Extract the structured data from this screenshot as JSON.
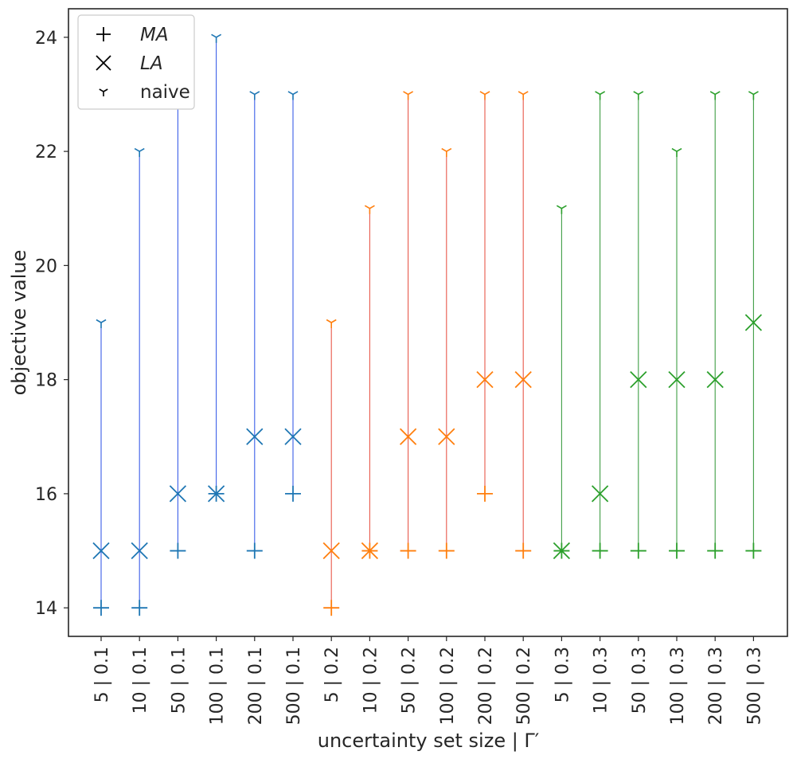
{
  "chart_data": {
    "type": "scatter",
    "xlabel": "uncertainty set size | Γ′",
    "ylabel": "objective value",
    "ylim": [
      13.5,
      24.5
    ],
    "yticks": [
      14,
      16,
      18,
      20,
      22,
      24
    ],
    "grid": false,
    "legend": {
      "placement": "top-left",
      "entries": [
        {
          "marker": "plus",
          "label": "MA",
          "italic": true
        },
        {
          "marker": "x",
          "label": "LA",
          "italic": true
        },
        {
          "marker": "tri",
          "label": "naive",
          "italic": false
        }
      ]
    },
    "groups": [
      {
        "gamma": "0.1",
        "marker_color": "#1f77b4",
        "line_color": "#3b5ee8"
      },
      {
        "gamma": "0.2",
        "marker_color": "#ff7f0e",
        "line_color": "#e8584a"
      },
      {
        "gamma": "0.3",
        "marker_color": "#2ca02c",
        "line_color": "#3f9e45"
      }
    ],
    "categories": [
      "5 | 0.1",
      "10 | 0.1",
      "50 | 0.1",
      "100 | 0.1",
      "200 | 0.1",
      "500 | 0.1",
      "5 | 0.2",
      "10 | 0.2",
      "50 | 0.2",
      "100 | 0.2",
      "200 | 0.2",
      "500 | 0.2",
      "5 | 0.3",
      "10 | 0.3",
      "50 | 0.3",
      "100 | 0.3",
      "200 | 0.3",
      "500 | 0.3"
    ],
    "category_group": [
      0,
      0,
      0,
      0,
      0,
      0,
      1,
      1,
      1,
      1,
      1,
      1,
      2,
      2,
      2,
      2,
      2,
      2
    ],
    "series": [
      {
        "name": "MA",
        "marker": "plus",
        "values": [
          14,
          14,
          15,
          16,
          15,
          16,
          14,
          15,
          15,
          15,
          16,
          15,
          15,
          15,
          15,
          15,
          15,
          15
        ]
      },
      {
        "name": "LA",
        "marker": "x",
        "values": [
          15,
          15,
          16,
          16,
          17,
          17,
          15,
          15,
          17,
          17,
          18,
          18,
          15,
          16,
          18,
          18,
          18,
          19
        ]
      },
      {
        "name": "naive",
        "marker": "tri",
        "values": [
          19,
          22,
          23,
          24,
          23,
          23,
          19,
          21,
          23,
          22,
          23,
          23,
          21,
          23,
          23,
          22,
          23,
          23
        ]
      }
    ]
  }
}
